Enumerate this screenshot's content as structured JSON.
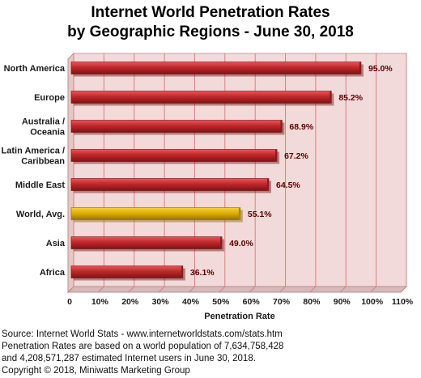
{
  "chart_data": {
    "type": "bar",
    "orientation": "horizontal",
    "title": [
      "Internet World Penetration Rates",
      "by Geographic Regions - June 30, 2018"
    ],
    "categories": [
      [
        "North America"
      ],
      [
        "Europe"
      ],
      [
        "Australia /",
        "Oceania"
      ],
      [
        "Latin America /",
        "Caribbean"
      ],
      [
        "Middle East"
      ],
      [
        "World, Avg."
      ],
      [
        "Asia"
      ],
      [
        "Africa"
      ]
    ],
    "values": [
      95.0,
      85.2,
      68.9,
      67.2,
      64.5,
      55.1,
      49.0,
      36.1
    ],
    "value_labels": [
      "95.0%",
      "85.2%",
      "68.9%",
      "67.2%",
      "64.5%",
      "55.1%",
      "49.0%",
      "36.1%"
    ],
    "highlight_index": 5,
    "xlabel": "Penetration Rate",
    "ylabel": "",
    "xlim": [
      0,
      110
    ],
    "xticks": [
      "0",
      "10%",
      "20%",
      "30%",
      "40%",
      "50%",
      "60%",
      "70%",
      "80%",
      "90%",
      "100%",
      "110%"
    ],
    "grid": true,
    "colors": {
      "bar": "#c0282b",
      "bar_highlight": "#e0b000",
      "plot_background": "#f2dada",
      "gridline": "#d88080",
      "value_label": "#5a0000"
    }
  },
  "footer": {
    "lines": [
      "Source: Internet World Stats - www.internetworldstats.com/stats.htm",
      "Penetration Rates are based on a world population of 7,634,758,428",
      "and 4,208,571,287 estimated Internet users in June 30, 2018.",
      "Copyright © 2018, Miniwatts Marketing Group"
    ]
  }
}
